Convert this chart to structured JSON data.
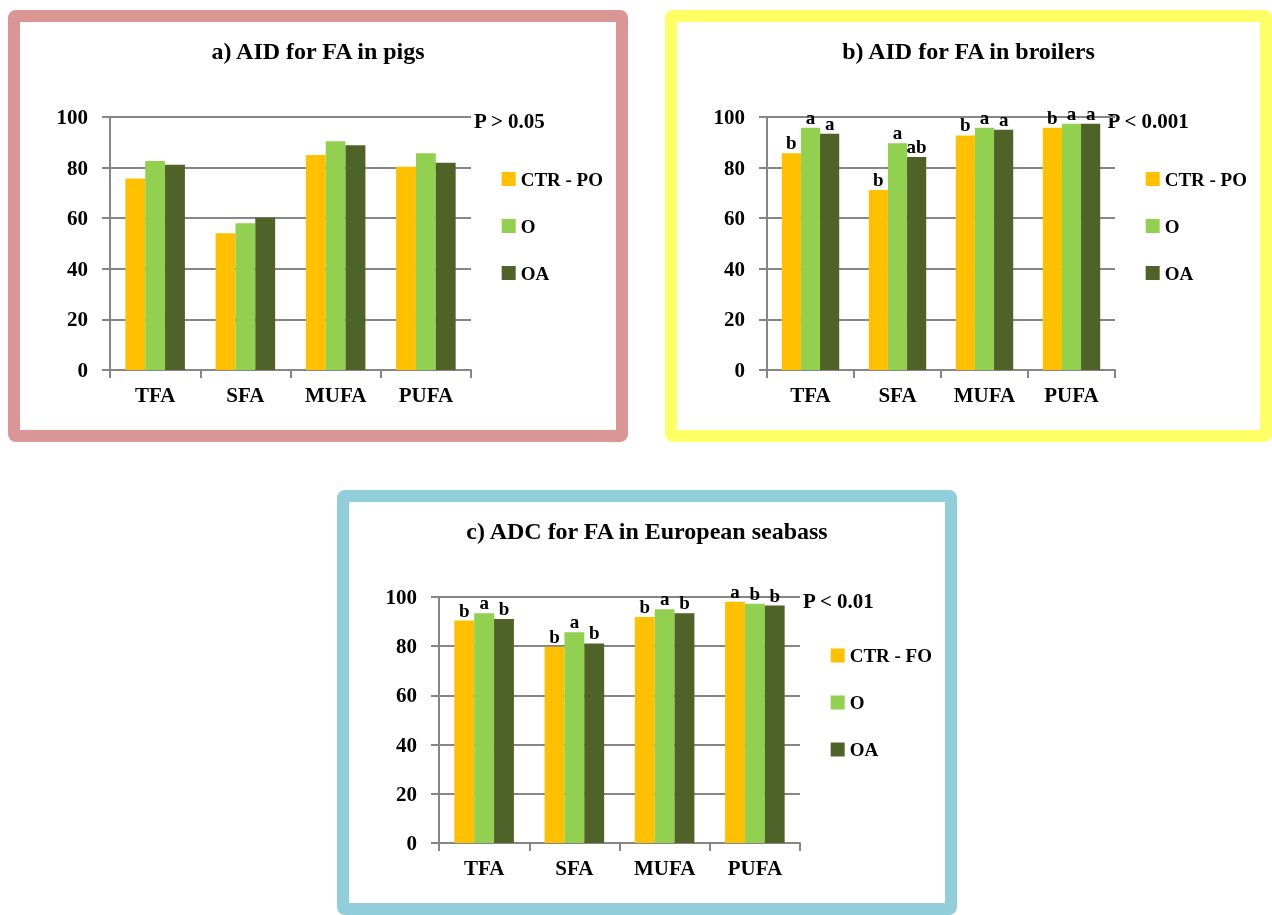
{
  "chart_data": [
    {
      "type": "bar",
      "title": "a) AID for FA in pigs",
      "categories": [
        "TFA",
        "SFA",
        "MUFA",
        "PUFA"
      ],
      "series": [
        {
          "name": "CTR - PO",
          "color": "#ffc000",
          "values": [
            75.7,
            54.1,
            85.0,
            80.3
          ]
        },
        {
          "name": "O",
          "color": "#92d050",
          "values": [
            82.6,
            58.0,
            90.4,
            85.7
          ]
        },
        {
          "name": "OA",
          "color": "#4f6228",
          "values": [
            81.1,
            60.3,
            88.8,
            81.9
          ]
        }
      ],
      "ylim": [
        0,
        100
      ],
      "yticks": [
        0,
        20,
        40,
        60,
        80,
        100
      ],
      "grid": "y",
      "legend": "right",
      "annotations": [
        "P > 0.05"
      ]
    },
    {
      "type": "bar",
      "title": "b) AID for FA in broilers",
      "categories": [
        "TFA",
        "SFA",
        "MUFA",
        "PUFA"
      ],
      "series": [
        {
          "name": "CTR - PO",
          "color": "#ffc000",
          "values": [
            85.7,
            71.1,
            92.7,
            95.8
          ],
          "value_labels": [
            "b",
            "b",
            "b",
            "b"
          ]
        },
        {
          "name": "O",
          "color": "#92d050",
          "values": [
            95.8,
            89.6,
            95.8,
            97.3
          ],
          "value_labels": [
            "a",
            "a",
            "a",
            "a"
          ]
        },
        {
          "name": "OA",
          "color": "#4f6228",
          "values": [
            93.4,
            84.2,
            95.0,
            97.3
          ],
          "value_labels": [
            "a",
            "ab",
            "a",
            "a"
          ]
        }
      ],
      "ylim": [
        0,
        100
      ],
      "yticks": [
        0,
        20,
        40,
        60,
        80,
        100
      ],
      "grid": "y",
      "legend": "right",
      "annotations": [
        "P < 0.001"
      ]
    },
    {
      "type": "bar",
      "title": "c) ADC for FA in European seabass",
      "categories": [
        "TFA",
        "SFA",
        "MUFA",
        "PUFA"
      ],
      "series": [
        {
          "name": "CTR - FO",
          "color": "#ffc000",
          "values": [
            90.4,
            79.8,
            91.9,
            98.1
          ],
          "value_labels": [
            "b",
            "b",
            "b",
            "a"
          ]
        },
        {
          "name": "O",
          "color": "#92d050",
          "values": [
            93.4,
            85.7,
            95.0,
            97.3
          ],
          "value_labels": [
            "a",
            "a",
            "a",
            "b"
          ]
        },
        {
          "name": "OA",
          "color": "#4f6228",
          "values": [
            91.1,
            81.1,
            93.4,
            96.5
          ],
          "value_labels": [
            "b",
            "b",
            "b",
            "b"
          ]
        }
      ],
      "ylim": [
        0,
        100
      ],
      "yticks": [
        0,
        20,
        40,
        60,
        80,
        100
      ],
      "grid": "y",
      "legend": "right",
      "annotations": [
        "P < 0.01"
      ]
    }
  ]
}
